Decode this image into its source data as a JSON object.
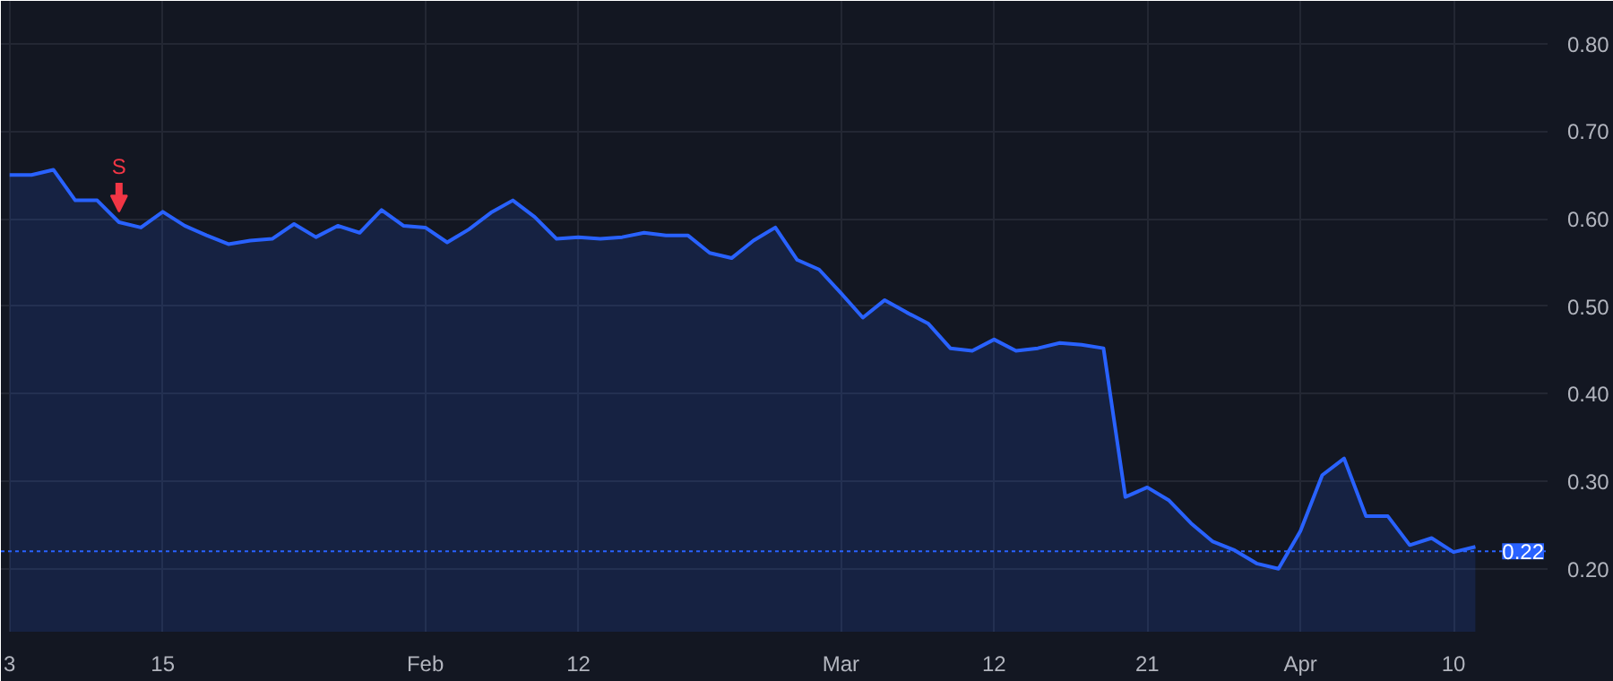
{
  "chart_data": {
    "type": "area",
    "categories": [
      "3",
      null,
      null,
      null,
      null,
      null,
      null,
      "15",
      null,
      null,
      null,
      null,
      null,
      null,
      null,
      null,
      null,
      null,
      null,
      "Feb",
      null,
      null,
      null,
      null,
      null,
      null,
      "12",
      null,
      null,
      null,
      null,
      null,
      null,
      null,
      null,
      null,
      null,
      null,
      "Mar",
      null,
      null,
      null,
      null,
      null,
      null,
      "12",
      null,
      null,
      null,
      null,
      null,
      null,
      "21",
      null,
      null,
      null,
      null,
      null,
      null,
      "Apr",
      null,
      null,
      null,
      null,
      null,
      null,
      "10",
      null
    ],
    "series": [
      {
        "color": "#2962ff",
        "values": [
          0.65,
          0.65,
          0.656,
          0.621,
          0.621,
          0.596,
          0.59,
          0.608,
          0.592,
          0.581,
          0.571,
          0.575,
          0.577,
          0.594,
          0.579,
          0.592,
          0.584,
          0.61,
          0.592,
          0.59,
          0.573,
          0.588,
          0.607,
          0.621,
          0.602,
          0.577,
          0.579,
          0.577,
          0.579,
          0.584,
          0.581,
          0.581,
          0.561,
          0.555,
          0.575,
          0.59,
          0.553,
          0.542,
          0.515,
          0.487,
          0.507,
          0.493,
          0.48,
          0.452,
          0.449,
          0.462,
          0.449,
          0.452,
          0.458,
          0.456,
          0.452,
          0.282,
          0.293,
          0.278,
          0.252,
          0.231,
          0.221,
          0.206,
          0.2,
          0.243,
          0.307,
          0.326,
          0.26,
          0.26,
          0.227,
          0.235,
          0.219,
          0.225
        ]
      }
    ],
    "ylim": [
      0.128,
      0.849
    ],
    "yticks": [
      {
        "value": 0.2,
        "label": "0.20"
      },
      {
        "value": 0.3,
        "label": "0.30"
      },
      {
        "value": 0.4,
        "label": "0.40"
      },
      {
        "value": 0.5,
        "label": "0.50"
      },
      {
        "value": 0.6,
        "label": "0.60"
      },
      {
        "value": 0.7,
        "label": "0.70"
      },
      {
        "value": 0.8,
        "label": "0.80"
      }
    ],
    "ref_lines": [
      {
        "axis": "y",
        "value": 0.22,
        "label": "0.22",
        "color": "#2962ff",
        "line_style": "dotted"
      }
    ],
    "annotations": [
      {
        "text": "S",
        "y": 0.596
      }
    ],
    "grid": true
  }
}
